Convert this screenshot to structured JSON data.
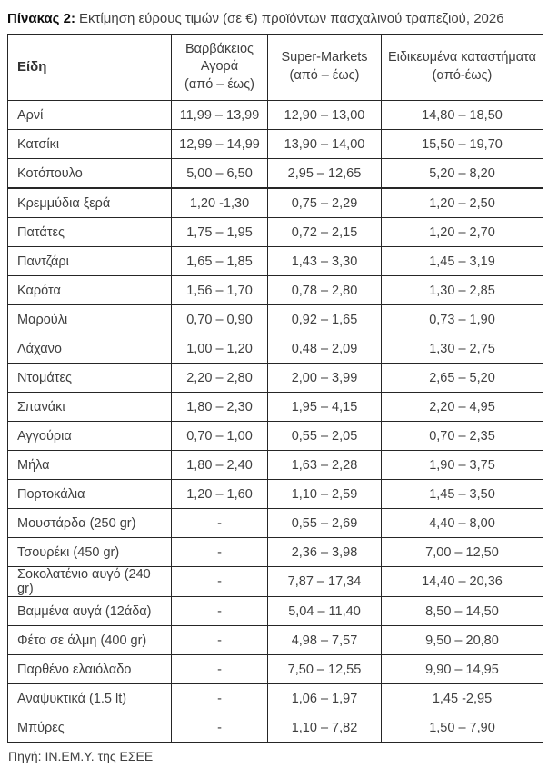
{
  "title": {
    "label": "Πίνακας 2:",
    "text": "Εκτίμηση εύρους τιμών (σε €) προϊόντων πασχαλινού τραπεζιού, 2026"
  },
  "colors": {
    "text": "#3f3f3f",
    "border": "#262626",
    "background": "#ffffff"
  },
  "table": {
    "columns": [
      {
        "title": "Είδη",
        "range": ""
      },
      {
        "title": "Βαρβάκειος Αγορά",
        "range": "(από – έως)"
      },
      {
        "title": "Super-Markets",
        "range": "(από – έως)"
      },
      {
        "title": "Ειδικευμένα καταστήματα",
        "range": "(από-έως)"
      }
    ],
    "rows": [
      {
        "item": "Αρνί",
        "varvakios": "11,99 – 13,99",
        "supermarkets": "12,90 – 13,00",
        "specialized": "14,80 – 18,50"
      },
      {
        "item": "Κατσίκι",
        "varvakios": "12,99 – 14,99",
        "supermarkets": "13,90 – 14,00",
        "specialized": "15,50 – 19,70"
      },
      {
        "item": "Κοτόπουλο",
        "varvakios": "5,00 – 6,50",
        "supermarkets": "2,95 – 12,65",
        "specialized": "5,20 – 8,20"
      },
      {
        "item": "Κρεμμύδια ξερά",
        "varvakios": "1,20 -1,30",
        "supermarkets": "0,75 – 2,29",
        "specialized": "1,20 – 2,50"
      },
      {
        "item": "Πατάτες",
        "varvakios": "1,75 – 1,95",
        "supermarkets": "0,72 – 2,15",
        "specialized": "1,20 – 2,70"
      },
      {
        "item": "Παντζάρι",
        "varvakios": "1,65 – 1,85",
        "supermarkets": "1,43 – 3,30",
        "specialized": "1,45 – 3,19"
      },
      {
        "item": "Καρότα",
        "varvakios": "1,56 – 1,70",
        "supermarkets": "0,78 – 2,80",
        "specialized": "1,30 – 2,85"
      },
      {
        "item": "Μαρούλι",
        "varvakios": "0,70 – 0,90",
        "supermarkets": "0,92 – 1,65",
        "specialized": "0,73 – 1,90"
      },
      {
        "item": "Λάχανο",
        "varvakios": "1,00 – 1,20",
        "supermarkets": "0,48 – 2,09",
        "specialized": "1,30 – 2,75"
      },
      {
        "item": "Ντομάτες",
        "varvakios": "2,20 – 2,80",
        "supermarkets": "2,00 – 3,99",
        "specialized": "2,65 – 5,20"
      },
      {
        "item": "Σπανάκι",
        "varvakios": "1,80 – 2,30",
        "supermarkets": "1,95 – 4,15",
        "specialized": "2,20 – 4,95"
      },
      {
        "item": "Αγγούρια",
        "varvakios": "0,70 – 1,00",
        "supermarkets": "0,55 – 2,05",
        "specialized": "0,70 – 2,35"
      },
      {
        "item": "Μήλα",
        "varvakios": "1,80 – 2,40",
        "supermarkets": "1,63 – 2,28",
        "specialized": "1,90 – 3,75"
      },
      {
        "item": "Πορτοκάλια",
        "varvakios": "1,20 – 1,60",
        "supermarkets": "1,10 – 2,59",
        "specialized": "1,45 – 3,50"
      },
      {
        "item": "Μουστάρδα (250 gr)",
        "varvakios": "-",
        "supermarkets": "0,55 – 2,69",
        "specialized": "4,40 – 8,00"
      },
      {
        "item": "Τσουρέκι (450 gr)",
        "varvakios": "-",
        "supermarkets": "2,36 – 3,98",
        "specialized": "7,00 – 12,50"
      },
      {
        "item": "Σοκολατένιο αυγό (240 gr)",
        "varvakios": "-",
        "supermarkets": "7,87 – 17,34",
        "specialized": "14,40 – 20,36"
      },
      {
        "item": "Βαμμένα αυγά (12άδα)",
        "varvakios": "-",
        "supermarkets": "5,04 – 11,40",
        "specialized": "8,50 – 14,50"
      },
      {
        "item": "Φέτα σε άλμη (400 gr)",
        "varvakios": "-",
        "supermarkets": "4,98 – 7,57",
        "specialized": "9,50 – 20,80"
      },
      {
        "item": "Παρθένο ελαιόλαδο",
        "varvakios": "-",
        "supermarkets": "7,50 – 12,55",
        "specialized": "9,90 – 14,95"
      },
      {
        "item": "Αναψυκτικά (1.5 lt)",
        "varvakios": "-",
        "supermarkets": "1,06 – 1,97",
        "specialized": "1,45 -2,95"
      },
      {
        "item": "Μπύρες",
        "varvakios": "-",
        "supermarkets": "1,10 – 7,82",
        "specialized": "1,50 – 7,90"
      }
    ]
  },
  "footer": {
    "source": "Πηγή: ΙΝ.ΕΜ.Υ. της ΕΣΕΕ"
  }
}
